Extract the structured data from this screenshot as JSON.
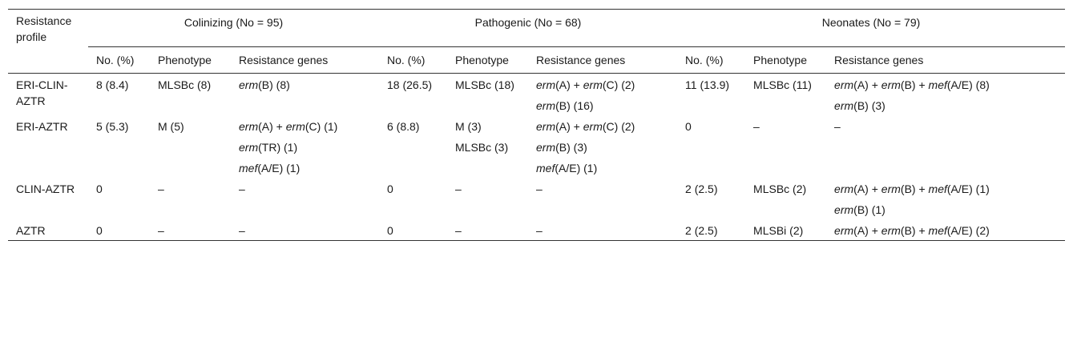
{
  "header": {
    "profile": "Resistance profile",
    "groups": [
      "Colinizing (No = 95)",
      "Pathogenic (No = 68)",
      "Neonates (No = 79)"
    ],
    "columns": [
      "No. (%)",
      "Phenotype",
      "Resistance genes",
      "No. (%)",
      "Phenotype",
      "Resistance genes",
      "No. (%)",
      "Phenotype",
      "Resistance genes"
    ]
  },
  "rows": [
    {
      "profile": "ERI-CLIN-AZTR",
      "subrows": [
        [
          "8 (8.4)",
          "MLSBc (8)",
          [
            "erm",
            "(B) (8)"
          ],
          "18 (26.5)",
          "MLSBc (18)",
          [
            "erm",
            "(A) + ",
            "erm",
            "(C) (2)"
          ],
          "11 (13.9)",
          "MLSBc (11)",
          [
            "erm",
            "(A) + ",
            "erm",
            "(B) + ",
            "mef",
            "(A/E) (8)"
          ]
        ],
        [
          null,
          null,
          null,
          null,
          null,
          [
            "erm",
            "(B) (16)"
          ],
          null,
          null,
          [
            "erm",
            "(B) (3)"
          ]
        ]
      ]
    },
    {
      "profile": "ERI-AZTR",
      "subrows": [
        [
          "5 (5.3)",
          "M (5)",
          [
            "erm",
            "(A) + ",
            "erm",
            "(C) (1)"
          ],
          "6 (8.8)",
          "M (3)",
          [
            "erm",
            "(A) + ",
            "erm",
            "(C) (2)"
          ],
          "0",
          "–",
          "–"
        ],
        [
          null,
          null,
          [
            "erm",
            "(TR) (1)"
          ],
          null,
          "MLSBc (3)",
          [
            "erm",
            "(B) (3)"
          ],
          null,
          null,
          null
        ],
        [
          null,
          null,
          [
            "mef",
            "(A/E) (1)"
          ],
          null,
          null,
          [
            "mef",
            "(A/E) (1)"
          ],
          null,
          null,
          null
        ]
      ]
    },
    {
      "profile": "CLIN-AZTR",
      "subrows": [
        [
          "0",
          "–",
          "–",
          "0",
          "–",
          "–",
          "2 (2.5)",
          "MLSBc (2)",
          [
            "erm",
            "(A) + ",
            "erm",
            "(B) + ",
            "mef",
            "(A/E) (1)"
          ]
        ],
        [
          null,
          null,
          null,
          null,
          null,
          null,
          null,
          null,
          [
            "erm",
            "(B) (1)"
          ]
        ]
      ]
    },
    {
      "profile": "AZTR",
      "subrows": [
        [
          "0",
          "–",
          "–",
          "0",
          "–",
          "–",
          "2 (2.5)",
          "MLSBi (2)",
          [
            "erm",
            "(A) + ",
            "erm",
            "(B) + ",
            "mef",
            "(A/E) (2)"
          ]
        ]
      ]
    }
  ]
}
